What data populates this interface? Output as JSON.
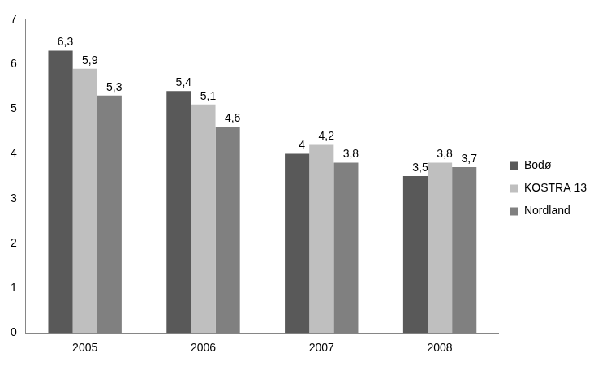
{
  "chart_data": {
    "type": "bar",
    "categories": [
      "2005",
      "2006",
      "2007",
      "2008"
    ],
    "series": [
      {
        "name": "Bodø",
        "color": "#595959",
        "values": [
          6.3,
          5.4,
          4,
          3.5
        ],
        "value_labels": [
          "6,3",
          "5,4",
          "4",
          "3,5"
        ]
      },
      {
        "name": "KOSTRA 13",
        "color": "#bfbfbf",
        "values": [
          5.9,
          5.1,
          4.2,
          3.8
        ],
        "value_labels": [
          "5,9",
          "5,1",
          "4,2",
          "3,8"
        ]
      },
      {
        "name": "Nordland",
        "color": "#808080",
        "values": [
          5.3,
          4.6,
          3.8,
          3.7
        ],
        "value_labels": [
          "5,3",
          "4,6",
          "3,8",
          "3,7"
        ]
      }
    ],
    "ylim": [
      0,
      7
    ],
    "yticks": [
      0,
      1,
      2,
      3,
      4,
      5,
      6,
      7
    ],
    "grid": false,
    "legend": "right",
    "data_labels": true
  }
}
